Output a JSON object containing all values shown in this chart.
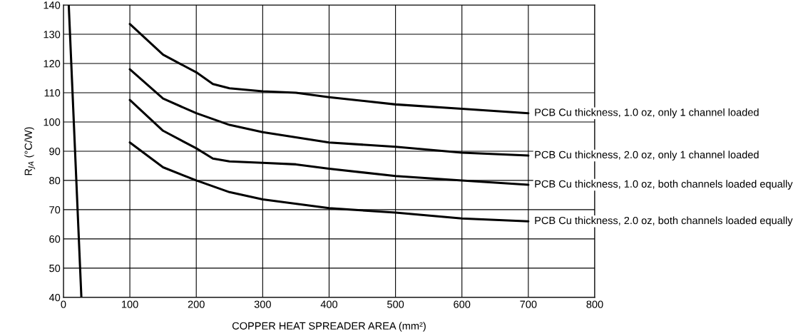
{
  "chart_data": {
    "type": "line",
    "xlabel": "COPPER HEAT SPREADER AREA (mm²)",
    "ylabel": "R$_{JA}$ (°C/W)",
    "xlim": [
      0,
      800
    ],
    "xticks": [
      0,
      100,
      200,
      300,
      400,
      500,
      600,
      700,
      800
    ],
    "ylim": [
      40,
      140
    ],
    "yticks": [
      40,
      50,
      60,
      70,
      80,
      90,
      100,
      110,
      120,
      130,
      140
    ],
    "grid": true,
    "marker": "none",
    "line_style": "solid",
    "series": [
      {
        "name": "PCB Cu thickness, 1.0 oz, only 1 channel loaded",
        "color": "#000000",
        "x": [
          100,
          150,
          200,
          225,
          250,
          300,
          350,
          400,
          500,
          600,
          700
        ],
        "values": [
          133.5,
          123,
          117,
          113,
          111.5,
          110.5,
          110,
          108.5,
          106,
          104.5,
          103
        ]
      },
      {
        "name": "PCB Cu thickness, 2.0 oz, only 1 channel loaded",
        "color": "#000000",
        "x": [
          100,
          150,
          200,
          250,
          300,
          400,
          500,
          600,
          700
        ],
        "values": [
          118,
          108,
          103,
          99,
          96.5,
          93,
          91.5,
          89.5,
          88.5
        ]
      },
      {
        "name": "PCB Cu thickness, 1.0 oz, both channels loaded equally",
        "color": "#000000",
        "x": [
          100,
          150,
          200,
          225,
          250,
          300,
          350,
          400,
          500,
          600,
          700
        ],
        "values": [
          107.5,
          97,
          91,
          87.5,
          86.5,
          86,
          85.5,
          84,
          81.5,
          80,
          78.5
        ]
      },
      {
        "name": "PCB Cu thickness, 2.0 oz, both channels loaded equally",
        "color": "#000000",
        "x": [
          100,
          150,
          200,
          250,
          300,
          400,
          500,
          600,
          700
        ],
        "values": [
          93,
          84.5,
          80,
          76,
          73.5,
          70.5,
          69,
          67,
          66
        ]
      },
      {
        "color": "#000000",
        "x": [
          8,
          27
        ],
        "values": [
          140,
          40
        ]
      }
    ]
  }
}
